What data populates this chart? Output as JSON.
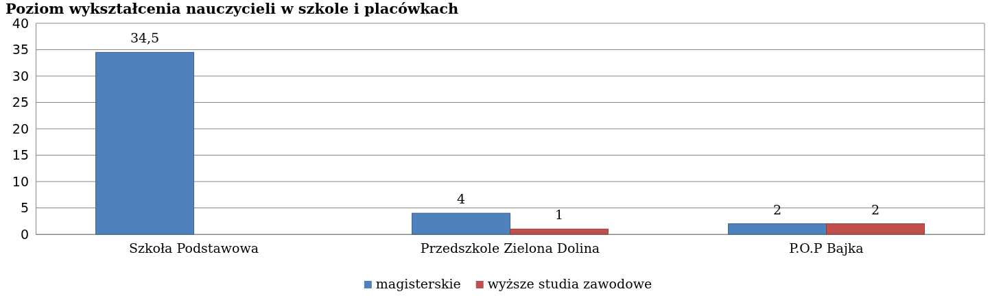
{
  "chart_data": {
    "type": "bar",
    "title": "Poziom wykształcenia nauczycieli w szkole i placówkach",
    "categories": [
      "Szkoła Podstawowa",
      "Przedszkole Zielona Dolina",
      "P.O.P Bajka"
    ],
    "series": [
      {
        "name": "magisterskie",
        "color": "#4f81bd",
        "values": [
          34.5,
          4,
          2
        ],
        "value_labels": [
          "34,5",
          "4",
          "2"
        ]
      },
      {
        "name": "wyższe studia zawodowe",
        "color": "#c0504d",
        "values": [
          null,
          1,
          2
        ],
        "value_labels": [
          null,
          "1",
          "2"
        ]
      }
    ],
    "ylim": [
      0,
      40
    ],
    "yticks": [
      0,
      5,
      10,
      15,
      20,
      25,
      30,
      35,
      40
    ],
    "grid": "y",
    "legend": "bottom"
  }
}
